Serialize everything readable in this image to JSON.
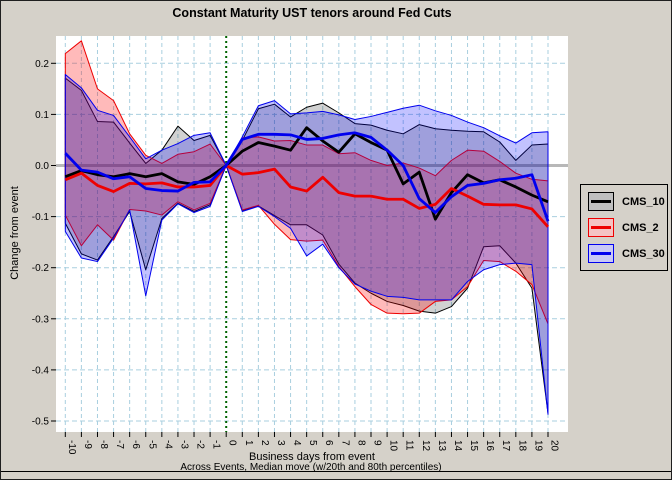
{
  "colors": {
    "figure_bg": "#d5d1c9",
    "plot_bg": "#ffffff",
    "grid": "#a9cfdf",
    "zero_line": "#b8b8b8",
    "event_line": "#006400",
    "text": "#000000"
  },
  "chart_data": {
    "type": "line",
    "title": "Constant Maturity UST tenors around Fed Cuts",
    "x_label": "Business days from event",
    "x_sublabel": "Across Events, Median move (w/20th and 80th percentiles)",
    "y_label": "Change from event",
    "grid": true,
    "legend_position": "right",
    "event_line_x": 0,
    "x_range": [
      -10.6,
      21.2
    ],
    "y_range": [
      -0.52,
      0.255
    ],
    "y_ticks": [
      0.2,
      0.1,
      0.0,
      -0.1,
      -0.2,
      -0.3,
      -0.4,
      -0.5
    ],
    "x": [
      -10,
      -9,
      -8,
      -7,
      -6,
      -5,
      -4,
      -3,
      -2,
      -1,
      0,
      1,
      2,
      3,
      4,
      5,
      6,
      7,
      8,
      9,
      10,
      11,
      12,
      13,
      14,
      15,
      16,
      17,
      18,
      19,
      20
    ],
    "series": [
      {
        "name": "CMS_10",
        "color": "#000000",
        "band_fill": "rgba(0,0,0,0.18)",
        "legend_fill": "#bfbfbf",
        "median": [
          -0.022,
          -0.01,
          -0.018,
          -0.022,
          -0.016,
          -0.022,
          -0.016,
          -0.032,
          -0.037,
          -0.022,
          0,
          0.028,
          0.045,
          0.038,
          0.03,
          0.074,
          0.048,
          0.026,
          0.062,
          0.045,
          0.03,
          -0.036,
          -0.013,
          -0.105,
          -0.053,
          -0.018,
          -0.034,
          -0.028,
          -0.042,
          -0.058,
          -0.071
        ],
        "p80": [
          0.171,
          0.147,
          0.086,
          0.085,
          0.044,
          0.004,
          0.03,
          0.077,
          0.049,
          0.059,
          0,
          0.049,
          0.111,
          0.12,
          0.095,
          0.114,
          0.122,
          0.103,
          0.082,
          0.079,
          0.069,
          0.062,
          0.08,
          0.072,
          0.069,
          0.067,
          0.066,
          0.046,
          0.01,
          0.04,
          0.042
        ],
        "p20": [
          -0.113,
          -0.173,
          -0.185,
          -0.139,
          -0.09,
          -0.204,
          -0.104,
          -0.074,
          -0.09,
          -0.077,
          0,
          -0.088,
          -0.079,
          -0.098,
          -0.116,
          -0.116,
          -0.136,
          -0.193,
          -0.23,
          -0.25,
          -0.266,
          -0.274,
          -0.285,
          -0.289,
          -0.276,
          -0.24,
          -0.159,
          -0.157,
          -0.191,
          -0.24,
          -0.485
        ]
      },
      {
        "name": "CMS_2",
        "color": "#ee0000",
        "band_fill": "rgba(255,0,0,0.27)",
        "legend_fill": "#f5c3c3",
        "median": [
          -0.028,
          -0.015,
          -0.039,
          -0.051,
          -0.035,
          -0.036,
          -0.034,
          -0.042,
          -0.042,
          -0.039,
          0,
          -0.017,
          -0.014,
          -0.007,
          -0.042,
          -0.05,
          -0.023,
          -0.053,
          -0.06,
          -0.06,
          -0.066,
          -0.066,
          -0.084,
          -0.076,
          -0.045,
          -0.06,
          -0.076,
          -0.077,
          -0.077,
          -0.085,
          -0.12
        ],
        "p80": [
          0.219,
          0.244,
          0.15,
          0.127,
          0.062,
          0.02,
          0.004,
          0.022,
          0.027,
          0.042,
          0,
          0.054,
          0.056,
          0.048,
          0.049,
          0.04,
          0.04,
          0.023,
          0.025,
          0.01,
          0.0,
          0.005,
          -0.005,
          -0.02,
          0.01,
          0.03,
          0.028,
          0.008,
          -0.015,
          -0.027,
          -0.03
        ],
        "p20": [
          -0.097,
          -0.157,
          -0.116,
          -0.146,
          -0.086,
          -0.089,
          -0.097,
          -0.071,
          -0.087,
          -0.074,
          0,
          -0.087,
          -0.078,
          -0.115,
          -0.145,
          -0.148,
          -0.146,
          -0.198,
          -0.237,
          -0.272,
          -0.289,
          -0.29,
          -0.289,
          -0.266,
          -0.263,
          -0.237,
          -0.186,
          -0.188,
          -0.207,
          -0.233,
          -0.31
        ]
      },
      {
        "name": "CMS_30",
        "color": "#0000ee",
        "band_fill": "rgba(0,0,255,0.24)",
        "legend_fill": "#c9c9f5",
        "median": [
          0.024,
          -0.009,
          -0.013,
          -0.026,
          -0.022,
          -0.045,
          -0.049,
          -0.05,
          -0.033,
          -0.032,
          0,
          0.051,
          0.061,
          0.061,
          0.06,
          0.051,
          0.053,
          0.06,
          0.064,
          0.055,
          0.03,
          0.0,
          -0.065,
          -0.092,
          -0.061,
          -0.039,
          -0.035,
          -0.028,
          -0.025,
          -0.018,
          -0.109
        ],
        "p80": [
          0.178,
          0.152,
          0.108,
          0.098,
          0.056,
          0.013,
          0.03,
          0.043,
          0.059,
          0.064,
          0,
          0.056,
          0.117,
          0.127,
          0.101,
          0.103,
          0.106,
          0.099,
          0.09,
          0.096,
          0.104,
          0.112,
          0.118,
          0.107,
          0.098,
          0.085,
          0.074,
          0.058,
          0.044,
          0.064,
          0.066
        ],
        "p20": [
          -0.129,
          -0.181,
          -0.188,
          -0.142,
          -0.087,
          -0.255,
          -0.107,
          -0.075,
          -0.092,
          -0.08,
          0,
          -0.09,
          -0.08,
          -0.1,
          -0.123,
          -0.177,
          -0.154,
          -0.2,
          -0.232,
          -0.246,
          -0.256,
          -0.258,
          -0.263,
          -0.263,
          -0.263,
          -0.227,
          -0.204,
          -0.194,
          -0.191,
          -0.194,
          -0.487
        ]
      }
    ]
  }
}
